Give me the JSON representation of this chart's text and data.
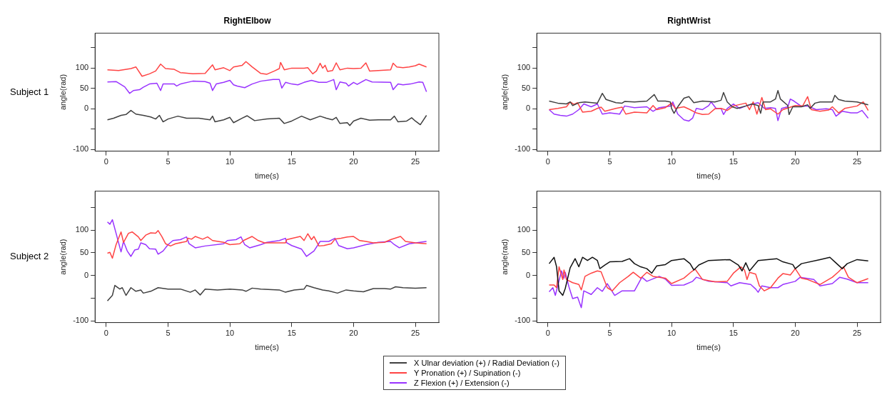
{
  "chart_data": [
    {
      "type": "line",
      "title": "RightElbow",
      "xlabel": "time(s)",
      "ylabel": "angle(rad)",
      "annotations": [
        "Subject 1"
      ],
      "xlim": [
        -0.9,
        26.9
      ],
      "ylim": [
        -104,
        186
      ],
      "xticks": [
        0,
        5,
        10,
        15,
        20,
        25
      ],
      "yticks": [
        {
          "value": -100,
          "label": "-100"
        },
        {
          "value": -50,
          "label": null
        },
        0,
        50,
        100,
        {
          "value": 150,
          "label": null
        }
      ],
      "marker": "none",
      "line_style": "solid",
      "series": [
        {
          "color": "#404040",
          "x": [
            0.1,
            0.6,
            1.2,
            1.6,
            2,
            2.4,
            3,
            3.6,
            4,
            4.3,
            4.6,
            5,
            5.8,
            6.5,
            7.5,
            8.4,
            8.6,
            8.8,
            9.5,
            10,
            10.3,
            11,
            11.4,
            12,
            13,
            14,
            14.4,
            15,
            15.8,
            16.5,
            17.3,
            17.8,
            18.3,
            18.6,
            18.9,
            19.5,
            19.7,
            20,
            20.6,
            21.3,
            22,
            23,
            23.3,
            23.6,
            24.3,
            24.7,
            25,
            25.4,
            25.9
          ],
          "values": [
            -27,
            -23,
            -16,
            -14,
            -4,
            -13,
            -16,
            -20,
            -25,
            -16,
            -32,
            -25,
            -18,
            -23,
            -23,
            -27,
            -18,
            -32,
            -27,
            -21,
            -34,
            -23,
            -17,
            -29,
            -25,
            -23,
            -36,
            -30,
            -18,
            -27,
            -18,
            -23,
            -27,
            -21,
            -36,
            -34,
            -41,
            -30,
            -23,
            -28,
            -27,
            -27,
            -18,
            -32,
            -30,
            -22,
            -30,
            -39,
            -16
          ]
        },
        {
          "color": "#ff4444",
          "x": [
            0.1,
            1,
            2,
            2.4,
            2.9,
            3.5,
            4,
            4.4,
            4.8,
            5.5,
            6,
            7,
            8,
            8.6,
            8.8,
            9.5,
            10,
            10.3,
            11,
            11.3,
            11.8,
            12.5,
            13,
            13.6,
            14,
            14.1,
            14.4,
            15,
            16,
            16.3,
            16.7,
            17,
            17.3,
            17.5,
            17.7,
            17.9,
            18.3,
            18.6,
            18.9,
            19.5,
            20,
            20.6,
            21,
            21.3,
            22,
            23,
            23.2,
            23.5,
            24,
            24.5,
            25,
            25.3,
            25.9
          ],
          "values": [
            96,
            94,
            99,
            103,
            80,
            86,
            93,
            110,
            99,
            97,
            89,
            86,
            87,
            108,
            96,
            101,
            94,
            103,
            107,
            116,
            103,
            87,
            85,
            93,
            99,
            114,
            96,
            100,
            100,
            101,
            86,
            93,
            112,
            100,
            107,
            92,
            94,
            113,
            96,
            100,
            99,
            100,
            113,
            93,
            94,
            96,
            112,
            103,
            101,
            103,
            106,
            110,
            103
          ]
        },
        {
          "color": "#9933ff",
          "x": [
            0.1,
            0.8,
            1.5,
            1.9,
            2.2,
            2.7,
            3,
            3.5,
            4.1,
            4.4,
            4.6,
            5.5,
            5.7,
            6,
            7,
            8,
            8.4,
            8.6,
            8.9,
            9.5,
            10,
            10.3,
            10.6,
            11.2,
            11.8,
            12.5,
            13.5,
            14,
            14.2,
            14.5,
            15,
            15.5,
            16,
            16.6,
            17.2,
            17.8,
            18.4,
            18.6,
            18.9,
            19.4,
            19.6,
            20,
            20.3,
            21,
            21.5,
            23,
            23.2,
            23.6,
            24,
            24.6,
            25.3,
            25.6,
            25.9
          ],
          "values": [
            66,
            67,
            54,
            38,
            45,
            47,
            53,
            61,
            63,
            45,
            61,
            61,
            56,
            61,
            68,
            67,
            63,
            45,
            61,
            65,
            70,
            59,
            56,
            52,
            61,
            68,
            72,
            72,
            51,
            65,
            61,
            59,
            65,
            70,
            65,
            65,
            72,
            47,
            66,
            63,
            56,
            65,
            60,
            72,
            66,
            65,
            47,
            61,
            59,
            61,
            66,
            65,
            42
          ]
        }
      ]
    },
    {
      "type": "line",
      "title": "RightWrist",
      "xlabel": "time(s)",
      "ylabel": "angle(rad)",
      "xlim": [
        -0.9,
        26.9
      ],
      "ylim": [
        -104,
        186
      ],
      "xticks": [
        0,
        5,
        10,
        15,
        20,
        25
      ],
      "yticks": [
        {
          "value": -100,
          "label": "-100"
        },
        {
          "value": -50,
          "label": null
        },
        0,
        50,
        100,
        {
          "value": 150,
          "label": null
        }
      ],
      "marker": "none",
      "line_style": "solid",
      "series": [
        {
          "color": "#404040",
          "x": [
            0.1,
            0.8,
            1.5,
            1.8,
            2,
            2.5,
            3,
            4,
            4.2,
            4.4,
            4.7,
            5.5,
            6,
            6.2,
            7,
            8,
            8.6,
            8.9,
            9.5,
            9.9,
            10,
            10.2,
            10.5,
            11,
            11.4,
            11.8,
            12.5,
            13.5,
            14,
            14.2,
            14.5,
            14.9,
            15.3,
            16,
            16.5,
            17,
            17.2,
            17.4,
            18,
            18.4,
            18.6,
            18.8,
            19.4,
            19.5,
            19.8,
            20.5,
            21,
            21.2,
            21.6,
            22,
            23,
            23.2,
            23.5,
            24,
            25,
            25.9
          ],
          "values": [
            19,
            14,
            12,
            17,
            8,
            15,
            17,
            14,
            26,
            38,
            23,
            15,
            14,
            18,
            17,
            19,
            35,
            19,
            19,
            17,
            1,
            -11,
            5,
            26,
            30,
            15,
            19,
            17,
            21,
            40,
            17,
            5,
            1,
            7,
            12,
            8,
            -11,
            17,
            17,
            24,
            45,
            24,
            8,
            -14,
            5,
            5,
            10,
            1,
            14,
            17,
            17,
            33,
            23,
            19,
            17,
            10
          ]
        },
        {
          "color": "#ff4444",
          "x": [
            0.1,
            0.8,
            1.5,
            1.8,
            2.1,
            2.4,
            2.8,
            3.5,
            4,
            4.3,
            4.6,
            5.5,
            6,
            6.3,
            7,
            8,
            8.5,
            8.8,
            9.5,
            10,
            10.3,
            11,
            11.5,
            12,
            12.5,
            13,
            13.5,
            14,
            14.5,
            15,
            16,
            16.3,
            16.6,
            16.9,
            17.3,
            17.6,
            18,
            18.6,
            19,
            20,
            20.6,
            21,
            21.3,
            22,
            22.7,
            23,
            23.5,
            24,
            25,
            25.5,
            25.9
          ],
          "values": [
            -2,
            1,
            5,
            17,
            11,
            15,
            -8,
            -6,
            1,
            4,
            -6,
            1,
            4,
            -13,
            -8,
            -10,
            8,
            -2,
            3,
            14,
            1,
            5,
            -2,
            -10,
            -14,
            -13,
            0,
            1,
            -4,
            7,
            14,
            -2,
            17,
            -13,
            28,
            -2,
            0,
            -13,
            -2,
            8,
            7,
            30,
            -2,
            -6,
            -3,
            5,
            -10,
            1,
            7,
            17,
            -4
          ]
        },
        {
          "color": "#9933ff",
          "x": [
            0.1,
            0.5,
            1,
            1.5,
            2,
            2.5,
            2.9,
            3.5,
            4,
            4.4,
            5,
            5.8,
            6.2,
            7,
            8,
            8.5,
            9,
            10,
            10.1,
            10.5,
            11,
            11.4,
            11.7,
            12,
            12.5,
            13,
            13.2,
            13.6,
            14,
            14.2,
            14.5,
            15,
            15.5,
            16,
            16.6,
            17,
            17.5,
            18,
            18.4,
            18.6,
            18.9,
            19.4,
            19.6,
            19.9,
            20.5,
            21,
            21.7,
            22.5,
            23,
            23.3,
            23.8,
            24.5,
            25,
            25.4,
            25.9
          ],
          "values": [
            -2,
            -13,
            -16,
            -18,
            -13,
            -2,
            12,
            5,
            12,
            -13,
            -10,
            -13,
            7,
            3,
            5,
            -6,
            3,
            7,
            17,
            -13,
            -27,
            -30,
            -23,
            1,
            -2,
            8,
            17,
            1,
            1,
            -14,
            1,
            12,
            1,
            7,
            12,
            15,
            1,
            3,
            1,
            -29,
            1,
            5,
            24,
            19,
            6,
            7,
            -2,
            0,
            -2,
            -18,
            -6,
            -10,
            -10,
            -4,
            -23
          ]
        }
      ]
    },
    {
      "type": "line",
      "xlabel": "time(s)",
      "ylabel": "angle(rad)",
      "annotations": [
        "Subject 2"
      ],
      "legend": "bottom",
      "xlim": [
        -0.9,
        26.9
      ],
      "ylim": [
        -104,
        186
      ],
      "xticks": [
        0,
        5,
        10,
        15,
        20,
        25
      ],
      "yticks": [
        {
          "value": -100,
          "label": "-100"
        },
        {
          "value": -50,
          "label": null
        },
        0,
        50,
        100,
        {
          "value": 150,
          "label": null
        }
      ],
      "marker": "none",
      "line_style": "solid",
      "series": [
        {
          "name": "X Ulnar deviation (+) / Radial Deviation (-)",
          "color": "#404040",
          "x": [
            0.1,
            0.5,
            0.7,
            1.1,
            1.3,
            1.6,
            2,
            2.4,
            2.8,
            3,
            3.6,
            4.2,
            5,
            6,
            6.8,
            7.2,
            7.6,
            8,
            9,
            10,
            11,
            11.3,
            11.8,
            12.5,
            14,
            14.5,
            15.2,
            16,
            16.2,
            16.8,
            17.5,
            18,
            18.7,
            19.4,
            20,
            20.8,
            21.6,
            22.5,
            23,
            23.4,
            24,
            25,
            25.9
          ],
          "values": [
            -56,
            -44,
            -22,
            -30,
            -27,
            -44,
            -27,
            -35,
            -32,
            -39,
            -35,
            -27,
            -30,
            -30,
            -37,
            -32,
            -43,
            -30,
            -32,
            -30,
            -32,
            -35,
            -28,
            -30,
            -32,
            -37,
            -32,
            -30,
            -22,
            -27,
            -32,
            -34,
            -39,
            -32,
            -34,
            -36,
            -29,
            -29,
            -30,
            -25,
            -27,
            -28,
            -27
          ]
        },
        {
          "name": "Y Pronation (+) / Supination (-)",
          "color": "#ff4444",
          "x": [
            0.1,
            0.3,
            0.5,
            0.8,
            1.2,
            1.4,
            1.8,
            2.1,
            2.6,
            2.8,
            3.2,
            3.6,
            4,
            4.2,
            4.5,
            4.8,
            5.2,
            5.6,
            6.5,
            6.6,
            6.9,
            7.2,
            7.8,
            8.2,
            8.6,
            9.5,
            10,
            10.8,
            11.1,
            11.8,
            12.3,
            12.8,
            14.5,
            14.6,
            15.2,
            15.7,
            16,
            16.3,
            16.6,
            16.8,
            17.2,
            17.6,
            18.2,
            18.5,
            19,
            19.5,
            20,
            20.5,
            21,
            21.6,
            22.5,
            23,
            23.8,
            24.2,
            25,
            25.9
          ],
          "values": [
            49,
            51,
            38,
            68,
            96,
            73,
            93,
            96,
            85,
            77,
            89,
            94,
            93,
            99,
            86,
            70,
            65,
            70,
            75,
            82,
            80,
            86,
            80,
            85,
            77,
            73,
            68,
            70,
            77,
            86,
            77,
            72,
            72,
            79,
            83,
            86,
            77,
            92,
            79,
            86,
            65,
            66,
            70,
            80,
            82,
            85,
            86,
            77,
            75,
            72,
            73,
            79,
            86,
            75,
            72,
            70
          ]
        },
        {
          "name": "Z Flexion (+) / Extension (-)",
          "color": "#9933ff",
          "x": [
            0.1,
            0.3,
            0.5,
            0.8,
            1.2,
            1.4,
            1.7,
            2,
            2.3,
            2.6,
            2.8,
            3.2,
            3.5,
            4,
            4.2,
            4.6,
            5,
            5.4,
            6,
            6.5,
            6.7,
            7.2,
            8,
            9.5,
            9.8,
            10.5,
            10.9,
            11.2,
            11.6,
            12.5,
            13,
            14,
            14.5,
            14.6,
            15,
            15.8,
            16.2,
            16.8,
            17.3,
            18,
            18.5,
            18.8,
            19.5,
            20,
            21,
            22,
            23,
            23.3,
            23.7,
            24.5,
            25.9
          ],
          "values": [
            118,
            113,
            123,
            93,
            52,
            75,
            54,
            42,
            56,
            58,
            72,
            68,
            59,
            58,
            47,
            54,
            68,
            77,
            79,
            85,
            70,
            61,
            65,
            70,
            77,
            79,
            85,
            68,
            61,
            68,
            73,
            77,
            82,
            72,
            66,
            58,
            42,
            54,
            75,
            75,
            82,
            66,
            59,
            61,
            68,
            73,
            75,
            68,
            61,
            70,
            75
          ]
        }
      ]
    },
    {
      "type": "line",
      "xlabel": "time(s)",
      "ylabel": "angle(rad)",
      "xlim": [
        -0.9,
        26.9
      ],
      "ylim": [
        -104,
        186
      ],
      "xticks": [
        0,
        5,
        10,
        15,
        20,
        25
      ],
      "yticks": [
        {
          "value": -100,
          "label": "-100"
        },
        {
          "value": -50,
          "label": null
        },
        0,
        50,
        100,
        {
          "value": 150,
          "label": null
        }
      ],
      "marker": "none",
      "line_style": "solid",
      "series": [
        {
          "color": "#111111",
          "x": [
            0.1,
            0.5,
            0.7,
            0.9,
            1.2,
            1.4,
            1.8,
            2.2,
            2.5,
            2.8,
            3.2,
            3.6,
            4,
            4.2,
            4.6,
            5,
            6,
            6.6,
            7,
            7.5,
            8,
            8.4,
            8.8,
            9.5,
            10,
            11,
            11.5,
            11.8,
            12.2,
            13,
            14.7,
            15.4,
            15.7,
            16,
            16.3,
            17,
            18.5,
            19,
            19.8,
            20,
            20.5,
            22,
            22.8,
            23.2,
            23.8,
            24.2,
            25,
            25.9
          ],
          "values": [
            26,
            40,
            19,
            -34,
            -44,
            -29,
            17,
            37,
            19,
            40,
            33,
            40,
            33,
            15,
            23,
            30,
            31,
            37,
            26,
            19,
            15,
            5,
            21,
            24,
            33,
            37,
            26,
            12,
            23,
            33,
            35,
            23,
            10,
            28,
            10,
            33,
            37,
            30,
            24,
            15,
            26,
            35,
            40,
            30,
            15,
            26,
            35,
            32
          ]
        },
        {
          "color": "#ff4444",
          "x": [
            0.1,
            0.5,
            0.7,
            0.9,
            1.2,
            1.3,
            1.5,
            2,
            2.5,
            2.7,
            3,
            3.5,
            4,
            4.3,
            4.8,
            5.2,
            5.8,
            6.5,
            6.9,
            7.5,
            8,
            8.5,
            9.5,
            10,
            11,
            11.6,
            11.9,
            12.5,
            13.5,
            14.5,
            15,
            15.6,
            15.9,
            16.1,
            16.3,
            16.8,
            17.1,
            17.5,
            18,
            18.6,
            19,
            19.6,
            20,
            20.5,
            21,
            22,
            23,
            23.5,
            23.9,
            24.3,
            25,
            25.9
          ],
          "values": [
            -21,
            -21,
            -27,
            19,
            -9,
            12,
            -9,
            -16,
            -20,
            -32,
            -2,
            5,
            10,
            8,
            -27,
            -34,
            -16,
            -2,
            7,
            -6,
            7,
            -2,
            -6,
            -18,
            -6,
            8,
            14,
            -9,
            -14,
            -13,
            5,
            19,
            12,
            -9,
            7,
            3,
            -23,
            -34,
            -27,
            -6,
            4,
            1,
            15,
            -6,
            -9,
            -20,
            -4,
            8,
            19,
            -4,
            -16,
            -7
          ]
        },
        {
          "color": "#9933ff",
          "x": [
            0.1,
            0.4,
            0.6,
            1.1,
            1.3,
            1.4,
            1.7,
            2,
            2.4,
            2.7,
            2.9,
            3.5,
            4,
            4.4,
            4.8,
            5.4,
            6,
            7,
            7.6,
            8,
            9,
            9.5,
            10,
            11,
            11.7,
            12,
            13,
            14.5,
            14.8,
            15.5,
            16.4,
            16.8,
            17,
            17.3,
            18,
            18.6,
            19,
            20,
            20.4,
            21.5,
            22,
            23,
            23.6,
            24.2,
            25,
            25.9
          ],
          "values": [
            -36,
            -27,
            -44,
            10,
            -6,
            7,
            -25,
            -51,
            -48,
            -71,
            -34,
            -42,
            -27,
            -35,
            -18,
            -44,
            -34,
            -34,
            -4,
            -13,
            -2,
            -8,
            -22,
            -21,
            -13,
            -4,
            -13,
            -16,
            -23,
            -16,
            -20,
            -30,
            -37,
            -23,
            -27,
            -27,
            -20,
            -13,
            -4,
            -9,
            -23,
            -18,
            -4,
            -8,
            -16,
            -16
          ]
        }
      ]
    }
  ]
}
